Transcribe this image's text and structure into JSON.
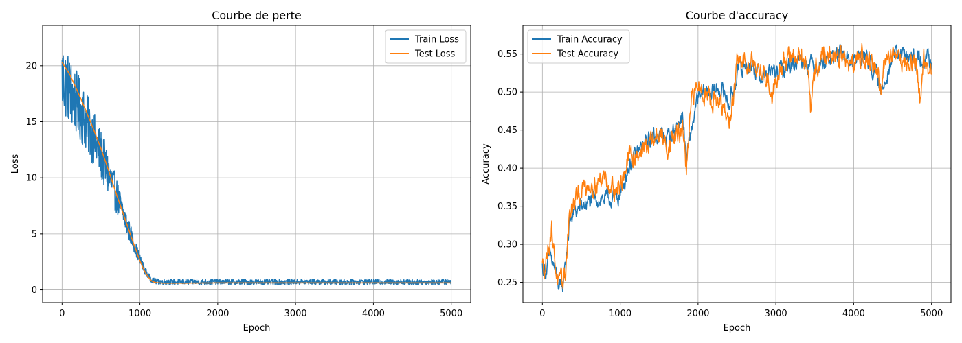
{
  "colors": {
    "train": "#1f77b4",
    "test": "#ff7f0e",
    "grid": "#b0b0b0"
  },
  "chart_data": [
    {
      "type": "line",
      "title": "Courbe de perte",
      "xlabel": "Epoch",
      "ylabel": "Loss",
      "xlim": [
        -250,
        5250
      ],
      "ylim": [
        -1.13,
        23.6
      ],
      "xticks": [
        0,
        1000,
        2000,
        3000,
        4000,
        5000
      ],
      "xtick_labels": [
        "0",
        "1000",
        "2000",
        "3000",
        "4000",
        "5000"
      ],
      "yticks": [
        0,
        5,
        10,
        15,
        20
      ],
      "ytick_labels": [
        "0",
        "5",
        "10",
        "15",
        "20"
      ],
      "grid": true,
      "legend_loc": "top-right",
      "legend": [
        "Train Loss",
        "Test Loss"
      ],
      "series": [
        {
          "name": "Train Loss",
          "color": "#1f77b4",
          "x": [
            0,
            50,
            100,
            150,
            200,
            250,
            300,
            350,
            400,
            450,
            500,
            550,
            600,
            650,
            700,
            750,
            800,
            850,
            900,
            950,
            1000,
            1050,
            1100,
            1150,
            1200,
            1300,
            1400,
            1500,
            1600,
            1800,
            2000,
            2500,
            3000,
            3500,
            4000,
            4500,
            5000
          ],
          "y": [
            19.0,
            18.4,
            17.8,
            17.1,
            16.5,
            15.8,
            15.1,
            14.4,
            13.6,
            12.8,
            12.0,
            11.1,
            10.2,
            9.3,
            8.4,
            7.4,
            6.5,
            5.5,
            4.6,
            3.6,
            2.7,
            1.9,
            1.3,
            0.9,
            0.75,
            0.72,
            0.72,
            0.7,
            0.72,
            0.7,
            0.72,
            0.7,
            0.72,
            0.7,
            0.72,
            0.7,
            0.72
          ],
          "noise": [
            3.5,
            3.3,
            3.1,
            3.0,
            2.9,
            2.8,
            2.7,
            2.6,
            2.5,
            2.4,
            2.3,
            2.2,
            2.0,
            1.8,
            1.6,
            1.4,
            1.2,
            1.0,
            0.8,
            0.6,
            0.5,
            0.4,
            0.3,
            0.25,
            0.25,
            0.25,
            0.25,
            0.25,
            0.25,
            0.25,
            0.25,
            0.25,
            0.25,
            0.25,
            0.25,
            0.25,
            0.25
          ]
        },
        {
          "name": "Test Loss",
          "color": "#ff7f0e",
          "x": [
            0,
            100,
            200,
            300,
            400,
            500,
            600,
            700,
            800,
            900,
            1000,
            1050,
            1100,
            1150,
            1200,
            1300,
            1500,
            2000,
            2500,
            3000,
            3500,
            4000,
            4500,
            5000
          ],
          "y": [
            20.3,
            19.2,
            17.7,
            16.1,
            14.4,
            12.6,
            10.6,
            8.5,
            6.5,
            4.5,
            2.6,
            1.8,
            1.2,
            0.8,
            0.65,
            0.6,
            0.6,
            0.62,
            0.62,
            0.62,
            0.62,
            0.62,
            0.62,
            0.62
          ]
        }
      ]
    },
    {
      "type": "line",
      "title": "Courbe d'accuracy",
      "xlabel": "Epoch",
      "ylabel": "Accuracy",
      "xlim": [
        -250,
        5250
      ],
      "ylim": [
        0.2235,
        0.5875
      ],
      "xticks": [
        0,
        1000,
        2000,
        3000,
        4000,
        5000
      ],
      "xtick_labels": [
        "0",
        "1000",
        "2000",
        "3000",
        "4000",
        "5000"
      ],
      "yticks": [
        0.25,
        0.3,
        0.35,
        0.4,
        0.45,
        0.5,
        0.55
      ],
      "ytick_labels": [
        "0.25",
        "0.30",
        "0.35",
        "0.40",
        "0.45",
        "0.50",
        "0.55"
      ],
      "grid": true,
      "legend_loc": "top-left",
      "legend": [
        "Train Accuracy",
        "Test Accuracy"
      ],
      "series": [
        {
          "name": "Train Accuracy",
          "color": "#1f77b4",
          "x": [
            0,
            50,
            100,
            150,
            200,
            230,
            260,
            300,
            350,
            400,
            500,
            600,
            700,
            800,
            900,
            1000,
            1100,
            1200,
            1300,
            1400,
            1500,
            1600,
            1700,
            1800,
            1850,
            1900,
            1950,
            2000,
            2100,
            2200,
            2300,
            2400,
            2450,
            2500,
            2600,
            2700,
            2800,
            2900,
            3000,
            3100,
            3200,
            3300,
            3400,
            3500,
            3600,
            3700,
            3800,
            3900,
            4000,
            4100,
            4200,
            4300,
            4350,
            4400,
            4500,
            4600,
            4700,
            4800,
            4900,
            5000
          ],
          "y": [
            0.27,
            0.265,
            0.285,
            0.27,
            0.25,
            0.24,
            0.245,
            0.28,
            0.33,
            0.34,
            0.35,
            0.355,
            0.36,
            0.36,
            0.36,
            0.365,
            0.4,
            0.415,
            0.43,
            0.44,
            0.445,
            0.44,
            0.45,
            0.47,
            0.41,
            0.44,
            0.47,
            0.49,
            0.5,
            0.5,
            0.505,
            0.485,
            0.5,
            0.525,
            0.535,
            0.535,
            0.52,
            0.525,
            0.525,
            0.53,
            0.535,
            0.545,
            0.54,
            0.535,
            0.54,
            0.545,
            0.55,
            0.545,
            0.54,
            0.55,
            0.54,
            0.52,
            0.495,
            0.52,
            0.545,
            0.55,
            0.545,
            0.54,
            0.545,
            0.54
          ],
          "noise": 0.009
        },
        {
          "name": "Test Accuracy",
          "color": "#ff7f0e",
          "x": [
            0,
            40,
            80,
            120,
            160,
            200,
            230,
            260,
            300,
            340,
            400,
            500,
            600,
            700,
            800,
            900,
            1000,
            1100,
            1200,
            1300,
            1400,
            1500,
            1600,
            1700,
            1800,
            1830,
            1850,
            1880,
            1900,
            1950,
            2000,
            2100,
            2200,
            2300,
            2400,
            2450,
            2500,
            2600,
            2700,
            2800,
            2900,
            2950,
            3000,
            3100,
            3200,
            3300,
            3400,
            3450,
            3500,
            3600,
            3700,
            3800,
            3900,
            4000,
            4100,
            4200,
            4300,
            4350,
            4400,
            4500,
            4600,
            4700,
            4800,
            4850,
            4900,
            5000
          ],
          "y": [
            0.27,
            0.275,
            0.3,
            0.32,
            0.28,
            0.25,
            0.245,
            0.25,
            0.265,
            0.335,
            0.35,
            0.37,
            0.38,
            0.38,
            0.39,
            0.375,
            0.375,
            0.41,
            0.42,
            0.425,
            0.435,
            0.445,
            0.43,
            0.44,
            0.45,
            0.43,
            0.39,
            0.43,
            0.47,
            0.5,
            0.51,
            0.5,
            0.49,
            0.48,
            0.46,
            0.49,
            0.535,
            0.54,
            0.545,
            0.525,
            0.52,
            0.49,
            0.52,
            0.54,
            0.545,
            0.55,
            0.53,
            0.47,
            0.53,
            0.55,
            0.545,
            0.55,
            0.54,
            0.53,
            0.555,
            0.54,
            0.53,
            0.5,
            0.535,
            0.555,
            0.545,
            0.535,
            0.54,
            0.49,
            0.545,
            0.515
          ],
          "noise": 0.011
        }
      ]
    }
  ]
}
